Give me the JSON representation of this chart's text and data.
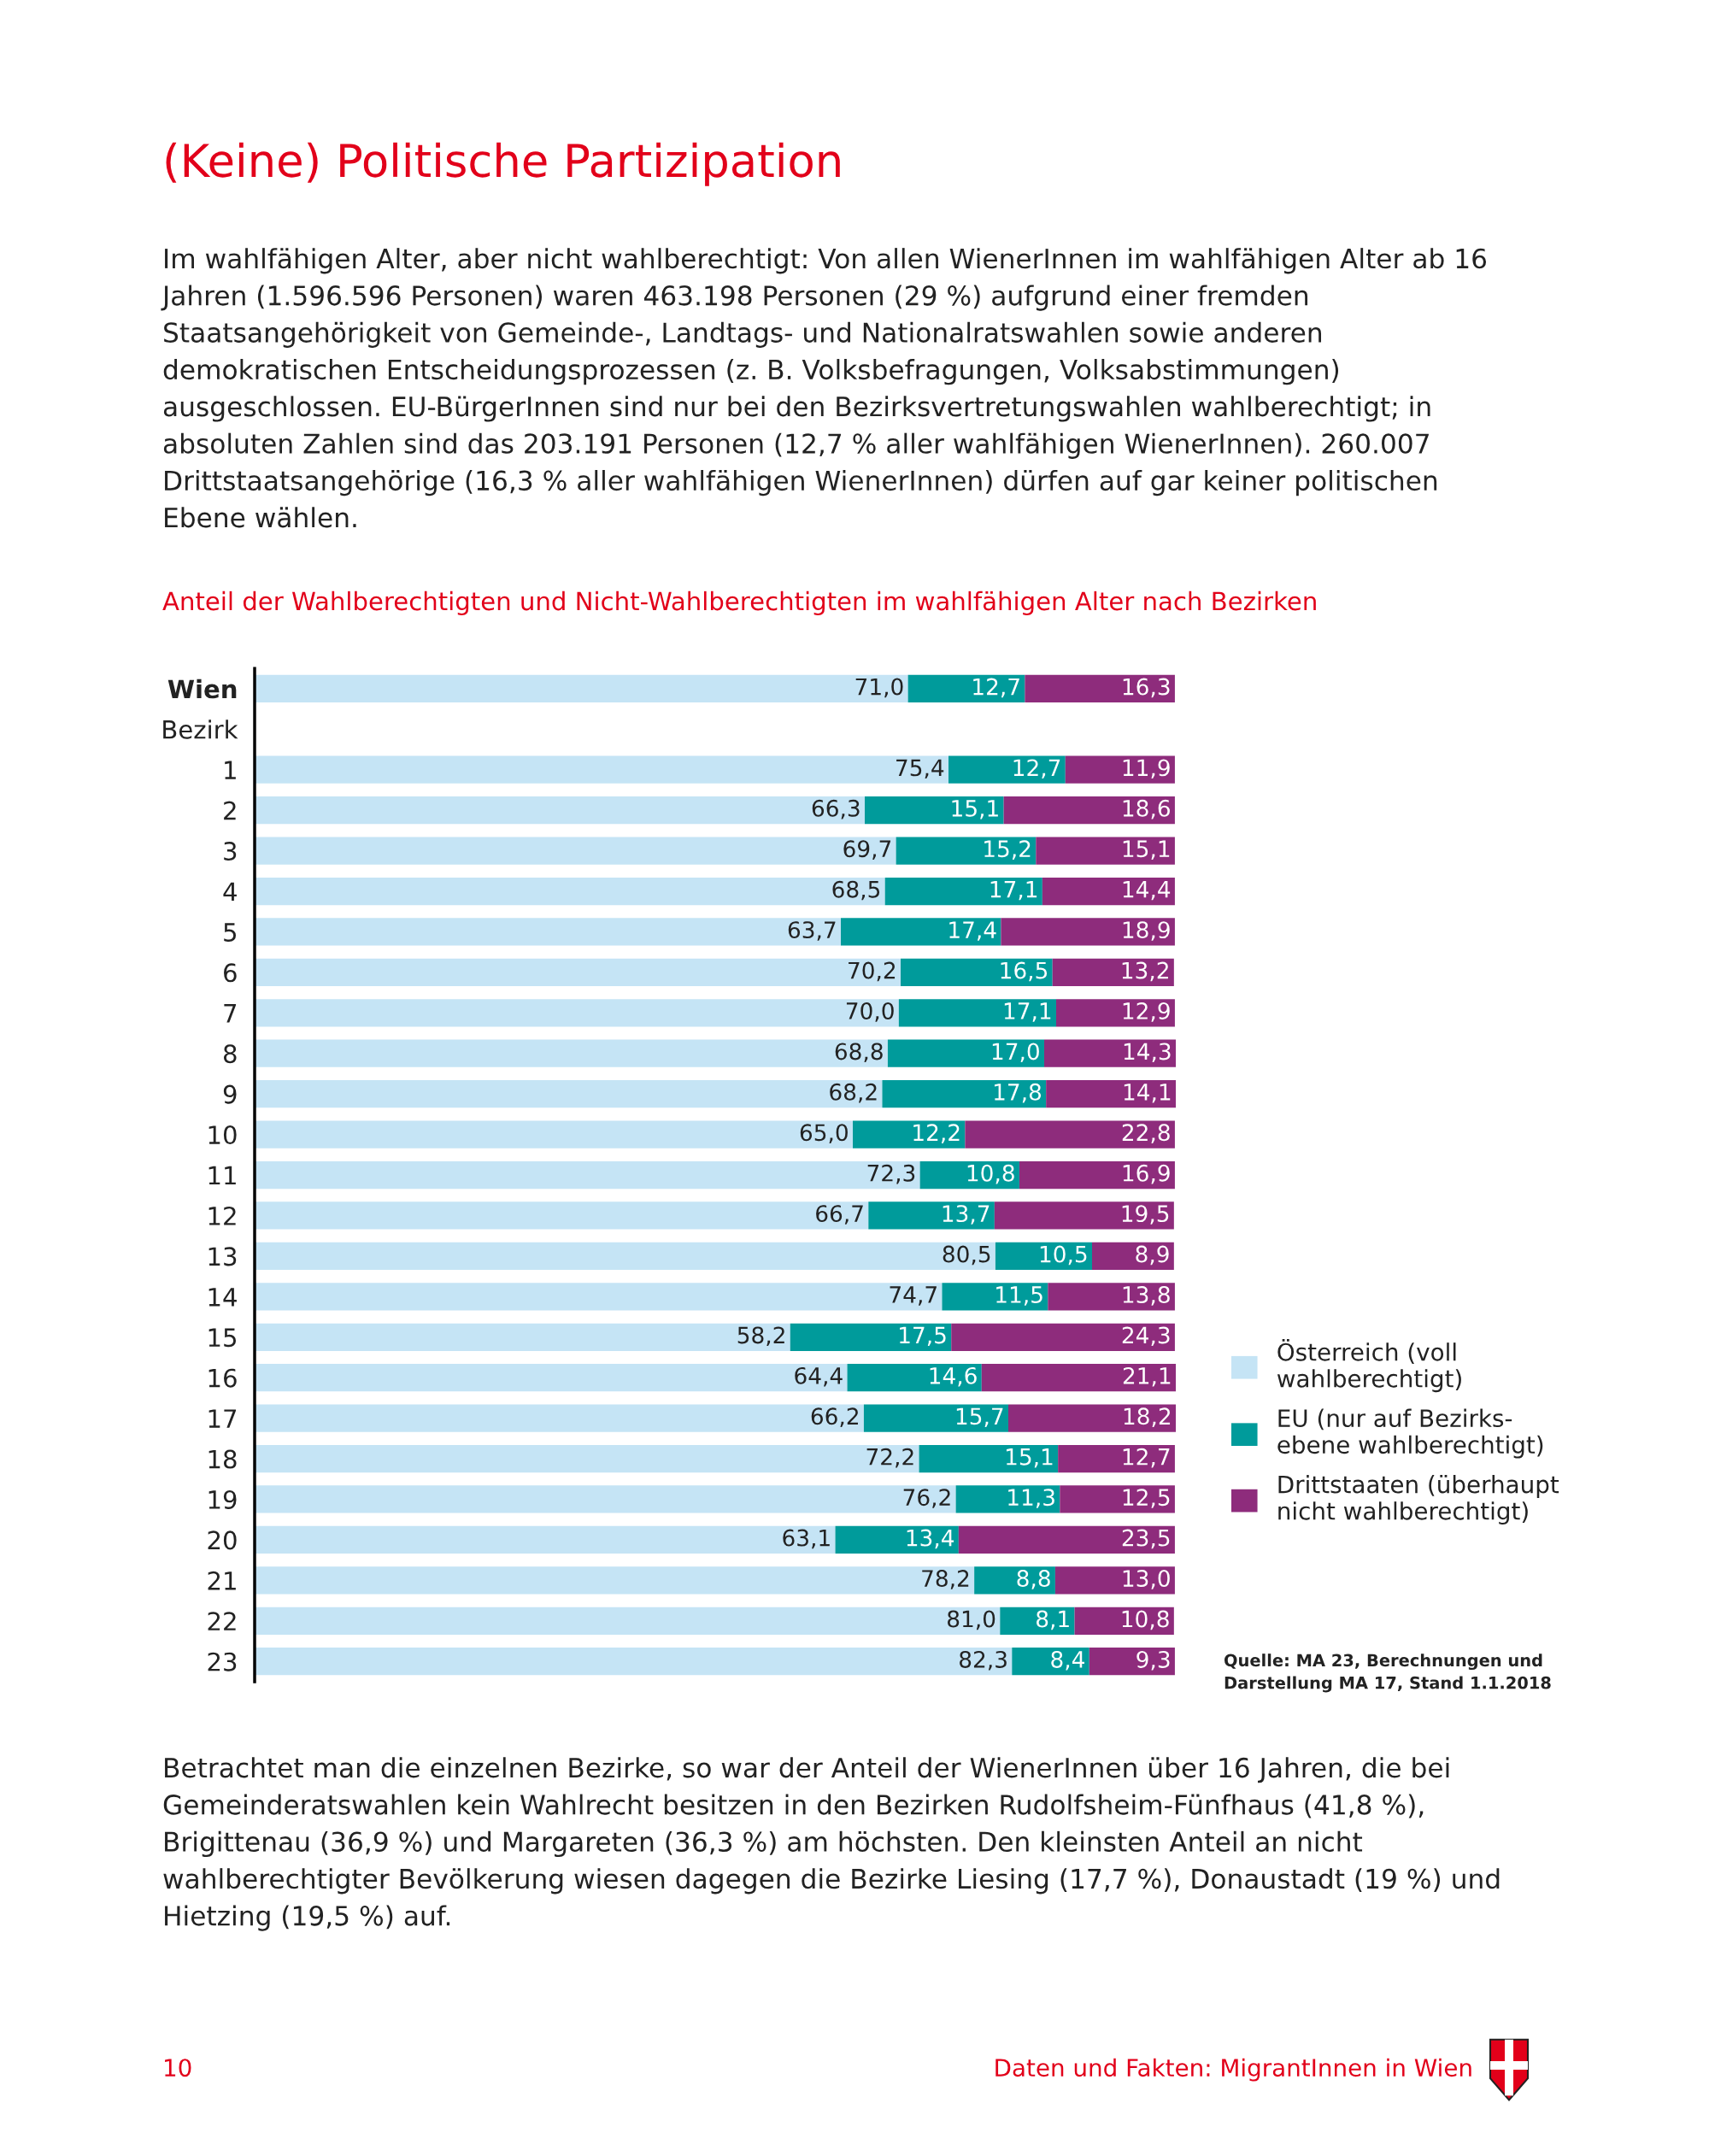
{
  "chart_data": {
    "type": "bar",
    "orientation": "horizontal",
    "stacked": true,
    "title": "(Keine) Politische Partizipation",
    "subtitle": "Anteil der Wahlberechtigten und Nicht-Wahlberechtigten im wahlfähigen Alter nach Bezirken",
    "categories": [
      "Wien",
      "Bezirk",
      "1",
      "2",
      "3",
      "4",
      "5",
      "6",
      "7",
      "8",
      "9",
      "10",
      "11",
      "12",
      "13",
      "14",
      "15",
      "16",
      "17",
      "18",
      "19",
      "20",
      "21",
      "22",
      "23"
    ],
    "series": [
      {
        "name": "Österreich (voll\nwahlberechtigt)",
        "color": "#c5e4f5",
        "values": [
          71.0,
          null,
          75.4,
          66.3,
          69.7,
          68.5,
          63.7,
          70.2,
          70.0,
          68.8,
          68.2,
          65.0,
          72.3,
          66.7,
          80.5,
          74.7,
          58.2,
          64.4,
          66.2,
          72.2,
          76.2,
          63.1,
          78.2,
          81.0,
          82.3
        ],
        "value_labels": [
          "71,0",
          null,
          "75,4",
          "66,3",
          "69,7",
          "68,5",
          "63,7",
          "70,2",
          "70,0",
          "68,8",
          "68,2",
          "65,0",
          "72,3",
          "66,7",
          "80,5",
          "74,7",
          "58,2",
          "64,4",
          "66,2",
          "72,2",
          "76,2",
          "63,1",
          "78,2",
          "81,0",
          "82,3"
        ]
      },
      {
        "name": "EU (nur auf Bezirks-\nebene wahlberechtigt)",
        "color": "#009b9b",
        "values": [
          12.7,
          null,
          12.7,
          15.1,
          15.2,
          17.1,
          17.4,
          16.5,
          17.1,
          17.0,
          17.8,
          12.2,
          10.8,
          13.7,
          10.5,
          11.5,
          17.5,
          14.6,
          15.7,
          15.1,
          11.3,
          13.4,
          8.8,
          8.1,
          8.4
        ],
        "value_labels": [
          "12,7",
          null,
          "12,7",
          "15,1",
          "15,2",
          "17,1",
          "17,4",
          "16,5",
          "17,1",
          "17,0",
          "17,8",
          "12,2",
          "10,8",
          "13,7",
          "10,5",
          "11,5",
          "17,5",
          "14,6",
          "15,7",
          "15,1",
          "11,3",
          "13,4",
          "8,8",
          "8,1",
          "8,4"
        ]
      },
      {
        "name": "Drittstaaten (überhaupt\nnicht wahlberechtigt)",
        "color": "#8e2c7c",
        "values": [
          16.3,
          null,
          11.9,
          18.6,
          15.1,
          14.4,
          18.9,
          13.2,
          12.9,
          14.3,
          14.1,
          22.8,
          16.9,
          19.5,
          8.9,
          13.8,
          24.3,
          21.1,
          18.2,
          12.7,
          12.5,
          23.5,
          13.0,
          10.8,
          9.3
        ],
        "value_labels": [
          "16,3",
          null,
          "11,9",
          "18,6",
          "15,1",
          "14,4",
          "18,9",
          "13,2",
          "12,9",
          "14,3",
          "14,1",
          "22,8",
          "16,9",
          "19,5",
          "8,9",
          "13,8",
          "24,3",
          "21,1",
          "18,2",
          "12,7",
          "12,5",
          "23,5",
          "13,0",
          "10,8",
          "9,3"
        ]
      }
    ],
    "legend": "right",
    "annotations": [
      "Im wahlfähigen Alter, aber nicht wahlberechtigt: Von allen WienerInnen im wahlfähigen Alter ab 16 Jahren (1.596.596 Personen) waren 463.198 Personen (29 %) aufgrund einer fremden Staatsangehörigkeit von Gemeinde-, Landtags- und Nationalratswahlen sowie anderen demokratischen Entscheidungsprozessen (z. B. Volksbefragungen, Volksabstimmungen) ausgeschlossen. EU-BürgerInnen sind nur bei den Bezirksvertretungswahlen wahlberechtigt; in absoluten Zahlen sind das 203.191 Personen (12,7 % aller wahlfähigen WienerInnen). 260.007 Drittstaatsangehörige (16,3 % aller wahlfähigen WienerInnen) dürfen auf gar keiner politischen Ebene wählen.",
      "Quelle: MA 23, Berechnungen und\nDarstellung MA 17, Stand 1.1.2018",
      "Betrachtet man die einzelnen Bezirke, so war der Anteil der WienerInnen über 16 Jahren, die bei Gemeinderatswahlen kein Wahlrecht besitzen in den Bezirken Rudolfsheim-Fünfhaus (41,8 %), Brigittenau (36,9 %) und Margareten (36,3 %) am höchsten. Den kleinsten Anteil an nicht wahlberechtigter Bevölkerung wiesen dagegen die Bezirke Liesing (17,7 %), Donaustadt (19 %) und Hietzing (19,5 %) auf.",
      "10",
      "Daten und Fakten: MigrantInnen in Wien"
    ]
  }
}
